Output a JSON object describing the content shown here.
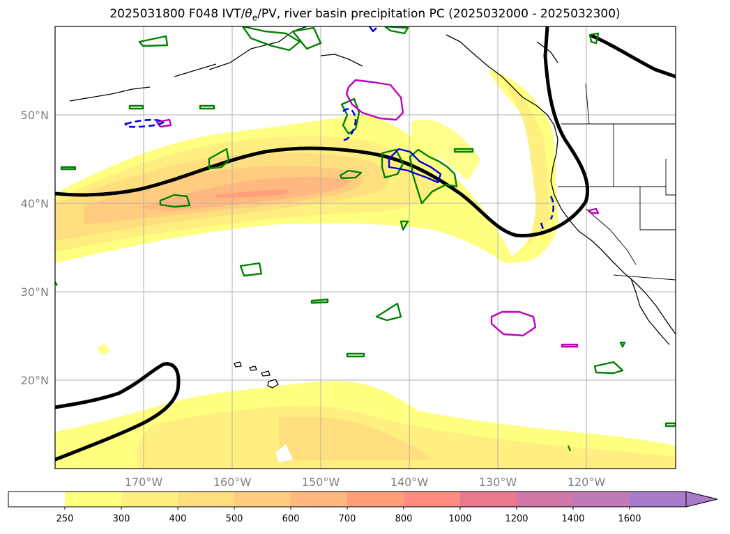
{
  "map": {
    "title_prefix": "2025031800 F048 IVT/",
    "title_theta": "θ",
    "title_sub": "e",
    "title_suffix": "/PV, river basin precipitation PC (2025032000 - 2025032300)",
    "lat_labels": [
      "50°N",
      "40°N",
      "30°N",
      "20°N"
    ],
    "lon_labels": [
      "170°W",
      "160°W",
      "150°W",
      "140°W",
      "130°W",
      "120°W"
    ],
    "features": [
      "coastlines",
      "state-borders",
      "ivt-shading",
      "pv-contour",
      "theta-e-contours",
      "precip-contours"
    ]
  },
  "colorbar": {
    "ticks": [
      "250",
      "300",
      "400",
      "500",
      "600",
      "700",
      "800",
      "1000",
      "1200",
      "1400",
      "1600"
    ],
    "colors": [
      "#ffffff",
      "#ffff80",
      "#ffef80",
      "#ffde80",
      "#ffcc80",
      "#ffb880",
      "#ffa07a",
      "#ff8c80",
      "#e87a8c",
      "#d078a8",
      "#c07ab8",
      "#a87cc8"
    ],
    "extend": "max"
  }
}
